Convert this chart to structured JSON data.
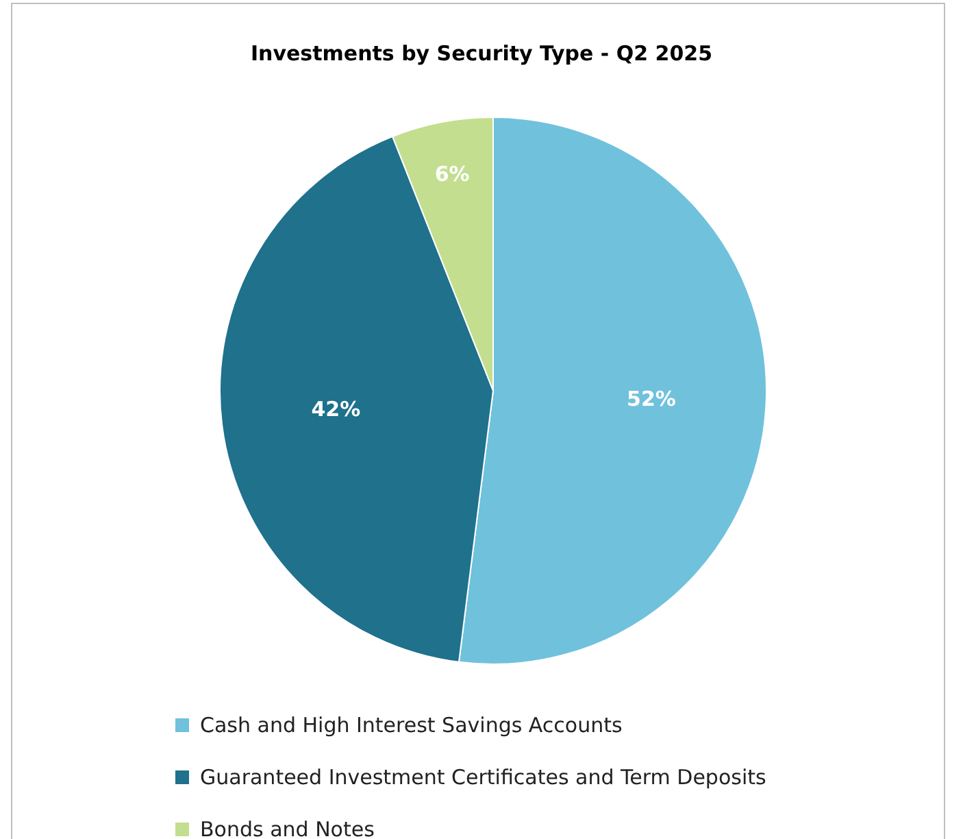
{
  "chart_data": {
    "type": "pie",
    "title": "Investments by Security Type - Q2 2025",
    "categories": [
      "Cash and High Interest Savings Accounts",
      "Guaranteed Investment Certificates and Term Deposits",
      "Bonds and Notes"
    ],
    "values": [
      52,
      42,
      6
    ],
    "colors": [
      "#70c1dc",
      "#1f718c",
      "#c3de8f"
    ],
    "value_labels": [
      "52%",
      "42%",
      "6%"
    ],
    "legend": "bottom"
  }
}
